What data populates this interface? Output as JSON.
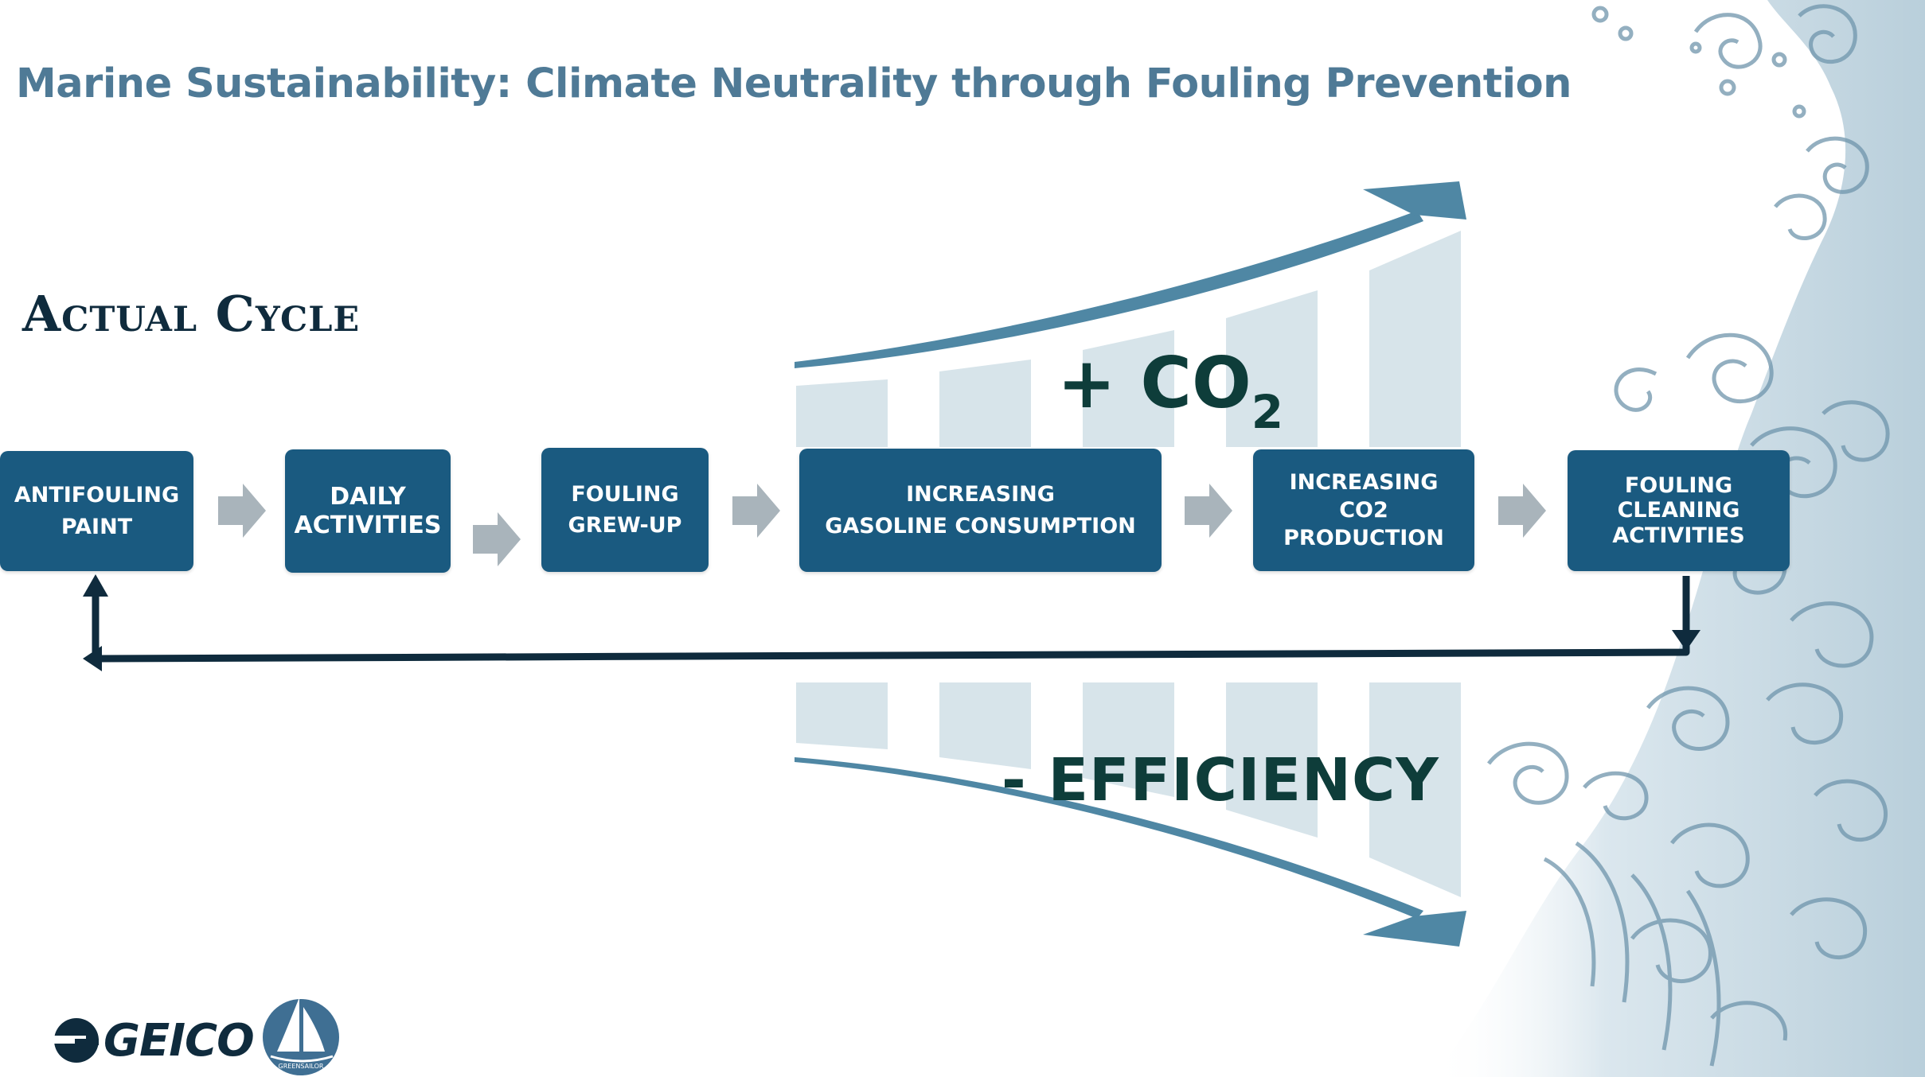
{
  "title": "Marine Sustainability: Climate Neutrality through Fouling Prevention",
  "section_label": "Actual Cycle",
  "steps": [
    {
      "lines": [
        "ANTIFOULING",
        "PAINT"
      ]
    },
    {
      "lines": [
        "DAILY",
        "ACTIVITIES"
      ]
    },
    {
      "lines": [
        "FOULING",
        "GREW-UP"
      ]
    },
    {
      "lines": [
        "INCREASING",
        "GASOLINE CONSUMPTION"
      ]
    },
    {
      "lines": [
        "INCREASING",
        "CO2",
        "PRODUCTION"
      ]
    },
    {
      "lines": [
        "FOULING",
        "CLEANING",
        "ACTIVITIES"
      ]
    }
  ],
  "co2_label": {
    "main": "+ CO",
    "sub": "2"
  },
  "efficiency_label": "- EFFICIENCY",
  "logos": {
    "brand": "GEICO",
    "partner_badge": "GREENSAILOR"
  },
  "colors": {
    "title": "#4f7a96",
    "box": "#1a5a80",
    "arrow_gray": "#a9b4bb",
    "bars": "#d7e4ea",
    "curve": "#4f87a4",
    "loop": "#0f2b3d",
    "big_text": "#0e3d3a"
  },
  "icons": [
    "flow-arrow-icon",
    "loop-arrow-icon",
    "trend-up-arrow-icon",
    "trend-down-arrow-icon",
    "geico-logo",
    "greensailor-logo"
  ]
}
